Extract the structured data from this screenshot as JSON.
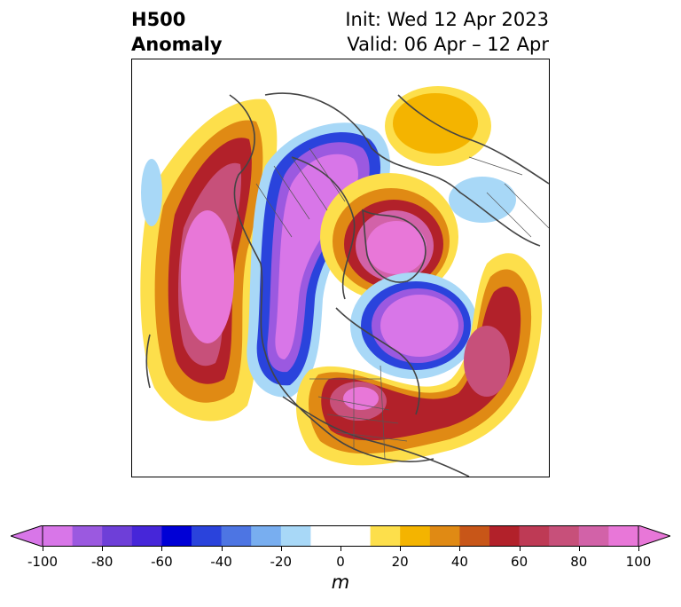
{
  "title": {
    "left_line1": "H500",
    "left_line2": "Anomaly",
    "right_line1": "Init: Wed 12 Apr 2023",
    "right_line2": "Valid: 06 Apr – 12 Apr"
  },
  "colorbar": {
    "unit": "m",
    "min": -100,
    "max": 100,
    "step": 10,
    "colors": [
      "#d876e8",
      "#9b59e0",
      "#6e3fd8",
      "#4626d9",
      "#0000d6",
      "#2a43dc",
      "#4d75e3",
      "#78aef0",
      "#a8d8f7",
      "#ffffff",
      "#ffffff",
      "#fddf4b",
      "#f4b400",
      "#e08a14",
      "#c85618",
      "#b2212a",
      "#be3a55",
      "#c7507a",
      "#d262a8",
      "#e877d8"
    ],
    "tick_labels": [
      "-100",
      "-80",
      "-60",
      "-40",
      "-20",
      "0",
      "20",
      "40",
      "60",
      "80",
      "100"
    ]
  }
}
